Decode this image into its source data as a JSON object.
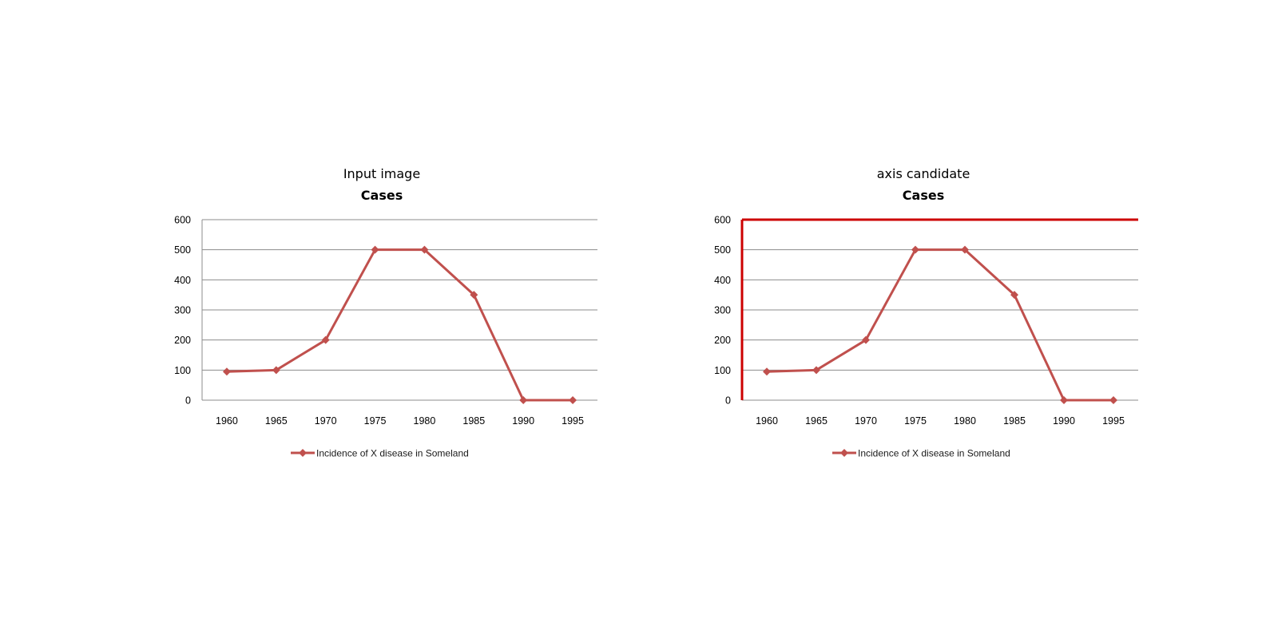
{
  "panels": [
    {
      "heading": "Input image",
      "highlight_axis": false
    },
    {
      "heading": "axis candidate",
      "highlight_axis": true
    }
  ],
  "colors": {
    "series": "#c0504d",
    "grid": "#8c8c8c",
    "highlight": "#cc0000"
  },
  "chart_data": [
    {
      "type": "line",
      "title": "Cases",
      "categories": [
        "1960",
        "1965",
        "1970",
        "1975",
        "1980",
        "1985",
        "1990",
        "1995"
      ],
      "series": [
        {
          "name": "Incidence of X disease in Someland",
          "values": [
            95,
            100,
            200,
            500,
            500,
            350,
            0,
            0
          ]
        }
      ],
      "yticks": [
        0,
        100,
        200,
        300,
        400,
        500,
        600
      ],
      "ylim": [
        0,
        600
      ],
      "grid": true,
      "legend": "bottom",
      "marker": "diamond"
    },
    {
      "type": "line",
      "title": "Cases",
      "categories": [
        "1960",
        "1965",
        "1970",
        "1975",
        "1980",
        "1985",
        "1990",
        "1995"
      ],
      "series": [
        {
          "name": "Incidence of X disease in Someland",
          "values": [
            95,
            100,
            200,
            500,
            500,
            350,
            0,
            0
          ]
        }
      ],
      "yticks": [
        0,
        100,
        200,
        300,
        400,
        500,
        600
      ],
      "ylim": [
        0,
        600
      ],
      "grid": true,
      "legend": "bottom",
      "marker": "diamond"
    }
  ]
}
